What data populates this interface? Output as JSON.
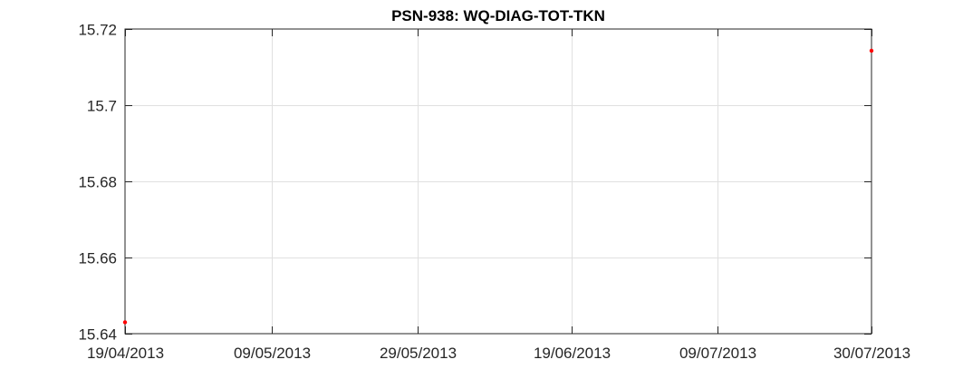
{
  "chart_data": {
    "type": "scatter",
    "title": "PSN-938: WQ-DIAG-TOT-TKN",
    "xlabel": "",
    "ylabel": "",
    "x_is_date": true,
    "xlim": [
      "2013-04-19",
      "2013-07-30"
    ],
    "ylim": [
      15.64,
      15.72
    ],
    "x_ticks": [
      "2013-04-19",
      "2013-05-09",
      "2013-05-29",
      "2013-06-19",
      "2013-07-09",
      "2013-07-30"
    ],
    "x_tick_labels": [
      "19/04/2013",
      "09/05/2013",
      "29/05/2013",
      "19/06/2013",
      "09/07/2013",
      "30/07/2013"
    ],
    "y_ticks": [
      15.64,
      15.66,
      15.68,
      15.7,
      15.72
    ],
    "y_tick_labels": [
      "15.64",
      "15.66",
      "15.68",
      "15.7",
      "15.72"
    ],
    "grid": true,
    "series": [
      {
        "color": "#ff0000",
        "points": [
          {
            "x": "2013-04-19",
            "y": 15.643
          },
          {
            "x": "2013-07-30",
            "y": 15.7143
          }
        ]
      }
    ]
  },
  "colors": {
    "axis": "#262626",
    "grid": "#e0e0e0",
    "marker": "#ff0000"
  }
}
